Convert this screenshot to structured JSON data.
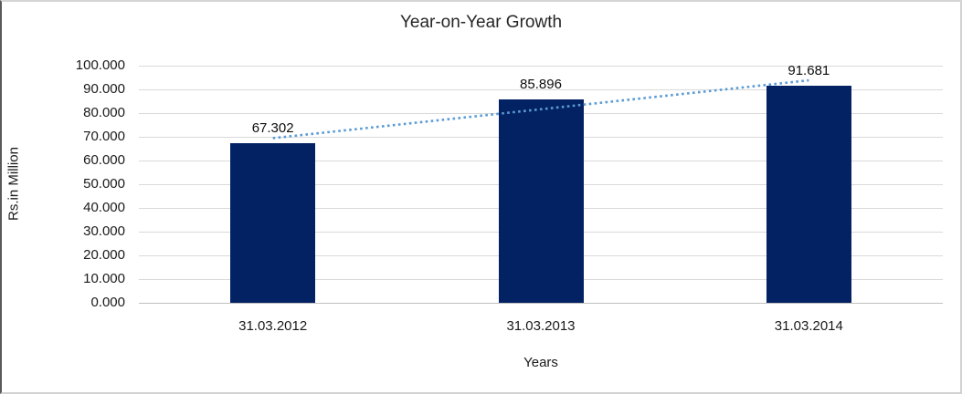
{
  "chart_data": {
    "type": "bar",
    "title": "Year-on-Year Growth",
    "xlabel": "Years",
    "ylabel": "Rs.in Million",
    "categories": [
      "31.03.2012",
      "31.03.2013",
      "31.03.2014"
    ],
    "values": [
      67.302,
      85.896,
      91.681
    ],
    "data_labels": [
      "67.302",
      "85.896",
      "91.681"
    ],
    "ylim": [
      0,
      100
    ],
    "ytick_step": 10,
    "ytick_labels": [
      "100.000",
      "90.000",
      "80.000",
      "70.000",
      "60.000",
      "50.000",
      "40.000",
      "30.000",
      "20.000",
      "10.000",
      "0.000"
    ],
    "grid": true,
    "legend": "none",
    "trendline": {
      "fit": "linear",
      "style": "dotted",
      "color": "#5B9BD5"
    },
    "colors": {
      "bar": "#032264",
      "trendline": "#5B9BD5",
      "gridline": "#D9D9D9",
      "axis_line": "#BFBFBF",
      "text": "#1A1A1A"
    }
  }
}
